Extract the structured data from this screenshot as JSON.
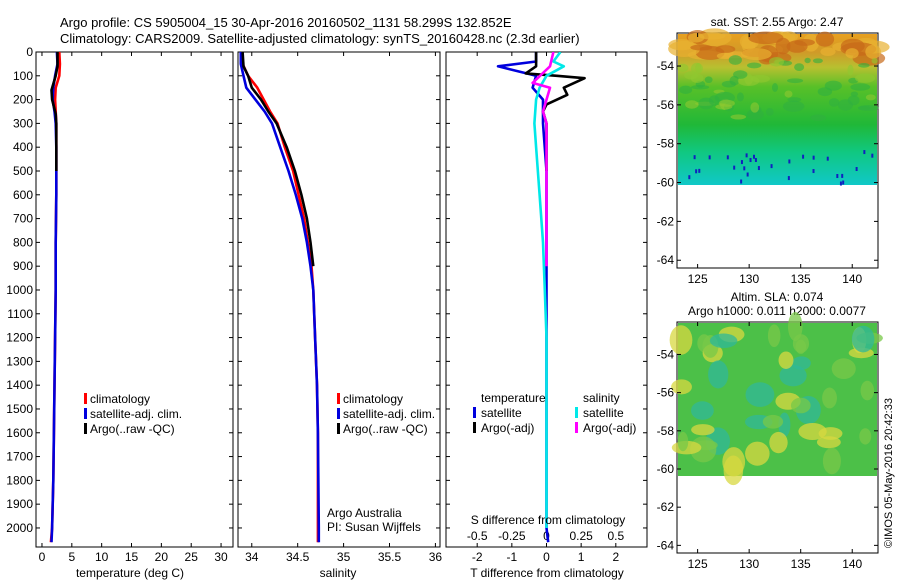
{
  "header": {
    "line1": "Argo profile: CS 5905004_15 30-Apr-2016 20160502_1131 58.299S 132.852E",
    "line2": "Climatology: CARS2009. Satellite-adjusted climatology: synTS_20160428.nc (2.3d earlier)"
  },
  "colors": {
    "clim": "#ff0000",
    "sat": "#0000dd",
    "argo": "#000000",
    "cyan": "#00e8e8",
    "magenta": "#ff00ff"
  },
  "chart_data": [
    {
      "type": "line",
      "id": "temperature",
      "xlabel": "temperature (deg C)",
      "ylabel": "",
      "xticks": [
        0,
        5,
        10,
        15,
        20,
        25,
        30
      ],
      "yticks": [
        0,
        100,
        200,
        300,
        400,
        500,
        600,
        700,
        800,
        900,
        1000,
        1100,
        1200,
        1300,
        1400,
        1500,
        1600,
        1700,
        1800,
        1900,
        2000
      ],
      "xlim": [
        -1,
        32
      ],
      "ylim": [
        2080,
        0
      ],
      "legend": {
        "items": [
          "climatology",
          "satellite-adj. clim.",
          "Argo(..raw -QC)"
        ]
      },
      "series": [
        {
          "name": "climatology",
          "color": "#ff0000",
          "points": [
            [
              2.9,
              0
            ],
            [
              3.0,
              50
            ],
            [
              2.9,
              100
            ],
            [
              2.3,
              150
            ],
            [
              2.2,
              200
            ],
            [
              2.3,
              250
            ],
            [
              2.4,
              300
            ],
            [
              2.4,
              400
            ],
            [
              2.4,
              600
            ],
            [
              2.3,
              800
            ],
            [
              2.3,
              1000
            ],
            [
              2.2,
              1200
            ],
            [
              2.1,
              1400
            ],
            [
              2.0,
              1600
            ],
            [
              1.9,
              1800
            ],
            [
              1.7,
              2000
            ],
            [
              1.5,
              2060
            ]
          ]
        },
        {
          "name": "satellite-adj. clim.",
          "color": "#0000dd",
          "points": [
            [
              2.5,
              0
            ],
            [
              2.6,
              50
            ],
            [
              2.2,
              100
            ],
            [
              1.9,
              150
            ],
            [
              1.8,
              200
            ],
            [
              2.1,
              250
            ],
            [
              2.3,
              300
            ],
            [
              2.4,
              400
            ],
            [
              2.4,
              600
            ],
            [
              2.3,
              800
            ],
            [
              2.3,
              1000
            ],
            [
              2.2,
              1200
            ],
            [
              2.1,
              1400
            ],
            [
              2.0,
              1600
            ],
            [
              1.9,
              1800
            ],
            [
              1.7,
              2000
            ],
            [
              1.6,
              2060
            ]
          ]
        },
        {
          "name": "Argo(..raw -QC)",
          "color": "#000000",
          "points": [
            [
              2.6,
              0
            ],
            [
              2.6,
              60
            ],
            [
              2.3,
              100
            ],
            [
              1.6,
              160
            ],
            [
              1.7,
              200
            ],
            [
              2.0,
              230
            ],
            [
              2.3,
              260
            ],
            [
              2.4,
              300
            ],
            [
              2.4,
              400
            ],
            [
              2.4,
              500
            ]
          ]
        }
      ]
    },
    {
      "type": "line",
      "id": "salinity",
      "xlabel": "salinity",
      "ylabel": "",
      "xticks": [
        34,
        34.5,
        35,
        35.5,
        36
      ],
      "xlim": [
        33.85,
        36.05
      ],
      "ylim": [
        2080,
        0
      ],
      "legend": {
        "items": [
          "climatology",
          "satellite-adj. clim.",
          "Argo(..raw -QC)"
        ]
      },
      "annotation": [
        "Argo Australia",
        "PI: Susan Wijffels"
      ],
      "series": [
        {
          "name": "climatology",
          "color": "#ff0000",
          "points": [
            [
              33.89,
              0
            ],
            [
              33.9,
              50
            ],
            [
              33.96,
              100
            ],
            [
              34.06,
              150
            ],
            [
              34.13,
              200
            ],
            [
              34.2,
              250
            ],
            [
              34.28,
              300
            ],
            [
              34.36,
              400
            ],
            [
              34.45,
              500
            ],
            [
              34.51,
              600
            ],
            [
              34.57,
              700
            ],
            [
              34.61,
              800
            ],
            [
              34.65,
              900
            ],
            [
              34.67,
              1000
            ],
            [
              34.69,
              1200
            ],
            [
              34.71,
              1400
            ],
            [
              34.72,
              1600
            ],
            [
              34.72,
              2000
            ],
            [
              34.72,
              2060
            ]
          ]
        },
        {
          "name": "satellite-adj. clim.",
          "color": "#0000dd",
          "points": [
            [
              33.88,
              0
            ],
            [
              33.88,
              50
            ],
            [
              33.91,
              100
            ],
            [
              33.94,
              150
            ],
            [
              34.04,
              200
            ],
            [
              34.14,
              250
            ],
            [
              34.22,
              300
            ],
            [
              34.31,
              400
            ],
            [
              34.4,
              500
            ],
            [
              34.48,
              600
            ],
            [
              34.55,
              700
            ],
            [
              34.6,
              800
            ],
            [
              34.64,
              900
            ],
            [
              34.67,
              1000
            ],
            [
              34.69,
              1200
            ],
            [
              34.71,
              1400
            ],
            [
              34.72,
              1600
            ],
            [
              34.73,
              2000
            ],
            [
              34.73,
              2060
            ]
          ]
        },
        {
          "name": "Argo(..raw -QC)",
          "color": "#000000",
          "points": [
            [
              33.9,
              0
            ],
            [
              33.91,
              60
            ],
            [
              33.96,
              100
            ],
            [
              34.0,
              150
            ],
            [
              34.1,
              200
            ],
            [
              34.18,
              250
            ],
            [
              34.27,
              300
            ],
            [
              34.38,
              400
            ],
            [
              34.47,
              500
            ],
            [
              34.54,
              600
            ],
            [
              34.6,
              700
            ],
            [
              34.64,
              800
            ],
            [
              34.67,
              900
            ]
          ]
        }
      ]
    },
    {
      "type": "line",
      "id": "differences",
      "xlabel": "T difference from climatology",
      "title": "S difference from climatology",
      "xticks": [
        -2,
        -1,
        0,
        1,
        2
      ],
      "sticks": [
        "-0.5",
        "-0.25",
        "0",
        "0.25",
        "0.5"
      ],
      "xlim": [
        -2.9,
        2.9
      ],
      "ylim": [
        2080,
        0
      ],
      "legend": {
        "temperature": "temperature",
        "salinity": "salinity",
        "items": [
          "satellite",
          "Argo(-adj)",
          "satellite",
          "Argo(-adj)"
        ]
      },
      "series": [
        {
          "name": "satellite",
          "group": "temperature",
          "color": "#0000dd",
          "points": [
            [
              -0.3,
              0
            ],
            [
              -0.3,
              40
            ],
            [
              -1.4,
              60
            ],
            [
              -0.3,
              100
            ],
            [
              -0.4,
              150
            ],
            [
              -0.1,
              200
            ],
            [
              -0.1,
              300
            ],
            [
              0.0,
              500
            ],
            [
              0.0,
              1000
            ],
            [
              0.0,
              2000
            ],
            [
              0.05,
              2060
            ]
          ]
        },
        {
          "name": "Argo(-adj)",
          "group": "temperature",
          "color": "#000000",
          "points": [
            [
              -0.3,
              0
            ],
            [
              -0.3,
              60
            ],
            [
              -0.6,
              90
            ],
            [
              0.3,
              100
            ],
            [
              1.1,
              110
            ],
            [
              0.5,
              150
            ],
            [
              0.6,
              180
            ],
            [
              0.0,
              220
            ],
            [
              -0.1,
              250
            ],
            [
              0.0,
              300
            ],
            [
              0.0,
              400
            ],
            [
              0.0,
              500
            ]
          ]
        },
        {
          "name": "satellite",
          "group": "salinity",
          "color": "#00e8e8",
          "points": [
            [
              0.4,
              0
            ],
            [
              0.2,
              40
            ],
            [
              0.5,
              60
            ],
            [
              0.0,
              100
            ],
            [
              -0.2,
              150
            ],
            [
              -0.3,
              200
            ],
            [
              -0.35,
              300
            ],
            [
              -0.3,
              400
            ],
            [
              -0.2,
              600
            ],
            [
              -0.1,
              800
            ],
            [
              -0.05,
              1000
            ],
            [
              0.0,
              1200
            ],
            [
              0.0,
              2000
            ]
          ]
        },
        {
          "name": "Argo(-adj)",
          "group": "salinity",
          "color": "#ff00ff",
          "points": [
            [
              0.2,
              0
            ],
            [
              0.1,
              60
            ],
            [
              -0.4,
              130
            ],
            [
              0.1,
              150
            ],
            [
              0.0,
              200
            ],
            [
              -0.1,
              250
            ],
            [
              0.0,
              300
            ],
            [
              0.0,
              500
            ],
            [
              0.0,
              900
            ]
          ]
        }
      ]
    },
    {
      "type": "heatmap",
      "id": "sst-map",
      "title": "sat. SST: 2.55  Argo: 2.47",
      "xticks": [
        125,
        130,
        135,
        140
      ],
      "yticks": [
        -54,
        -56,
        -58,
        -60,
        -62,
        -64
      ],
      "xlim": [
        123,
        142.5
      ],
      "ylim": [
        -52.3,
        -64.4
      ]
    },
    {
      "type": "heatmap",
      "id": "sla-map",
      "title": "Altim. SLA: 0.074",
      "subtitle": "Argo h1000: 0.011  h2000: 0.0077",
      "xticks": [
        125,
        130,
        135,
        140
      ],
      "yticks": [
        -54,
        -56,
        -58,
        -60,
        -62,
        -64
      ],
      "xlim": [
        123,
        142.5
      ],
      "ylim": [
        -52.3,
        -64.4
      ]
    }
  ],
  "footer": {
    "credit": "©IMOS 05-May-2016 20:42:33"
  }
}
